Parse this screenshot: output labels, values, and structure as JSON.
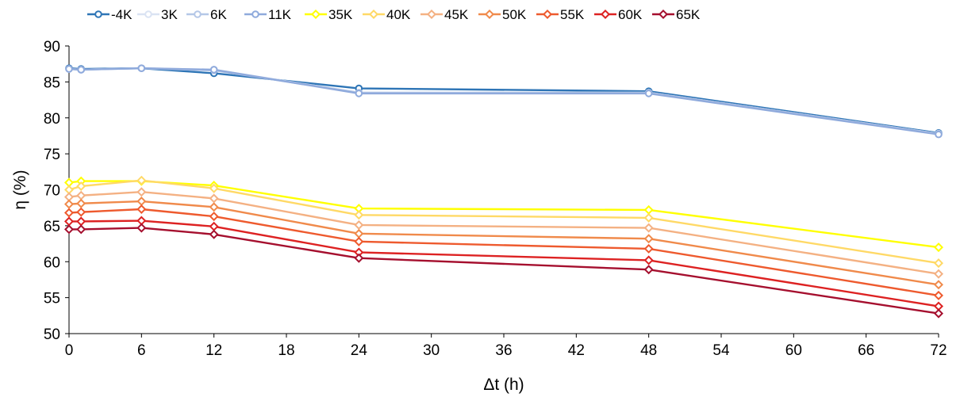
{
  "chart_data": {
    "type": "line",
    "xlabel": "Δt (h)",
    "ylabel": "η (%)",
    "xlim": [
      0,
      72
    ],
    "ylim": [
      50,
      90
    ],
    "xticks": [
      0,
      6,
      12,
      18,
      24,
      30,
      36,
      42,
      48,
      54,
      60,
      66,
      72
    ],
    "yticks": [
      50,
      55,
      60,
      65,
      70,
      75,
      80,
      85,
      90
    ],
    "grid": false,
    "legend_position": "top",
    "x": [
      0,
      1,
      6,
      12,
      24,
      48,
      72
    ],
    "series": [
      {
        "name": "-4K",
        "marker": "circle",
        "color": "#2E75B6",
        "values": [
          86.9,
          86.8,
          86.9,
          86.2,
          84.1,
          83.7,
          77.9
        ]
      },
      {
        "name": "3K",
        "marker": "circle",
        "color": "#DAE3F3",
        "values": [
          86.8,
          86.7,
          86.9,
          86.7,
          83.5,
          83.5,
          77.8
        ]
      },
      {
        "name": "6K",
        "marker": "circle",
        "color": "#B4C7E7",
        "values": [
          86.8,
          86.7,
          86.9,
          86.6,
          83.5,
          83.5,
          77.8
        ]
      },
      {
        "name": "11K",
        "marker": "circle",
        "color": "#8FAADC",
        "values": [
          86.8,
          86.7,
          86.9,
          86.7,
          83.4,
          83.4,
          77.7
        ]
      },
      {
        "name": "35K",
        "marker": "diamond",
        "color": "#FFFF00",
        "values": [
          71.0,
          71.2,
          71.2,
          70.6,
          67.4,
          67.2,
          62.0
        ]
      },
      {
        "name": "40K",
        "marker": "diamond",
        "color": "#FFD966",
        "values": [
          70.0,
          70.5,
          71.3,
          70.2,
          66.5,
          66.1,
          59.8
        ]
      },
      {
        "name": "45K",
        "marker": "diamond",
        "color": "#F4B183",
        "values": [
          69.0,
          69.2,
          69.7,
          68.8,
          65.1,
          64.7,
          58.3
        ]
      },
      {
        "name": "50K",
        "marker": "diamond",
        "color": "#F08A4B",
        "values": [
          68.0,
          68.1,
          68.4,
          67.6,
          63.9,
          63.2,
          56.8
        ]
      },
      {
        "name": "55K",
        "marker": "diamond",
        "color": "#EE5A2E",
        "values": [
          66.8,
          66.9,
          67.3,
          66.3,
          62.8,
          61.8,
          55.3
        ]
      },
      {
        "name": "60K",
        "marker": "diamond",
        "color": "#DD2222",
        "values": [
          65.6,
          65.6,
          65.7,
          64.9,
          61.3,
          60.2,
          53.8
        ]
      },
      {
        "name": "65K",
        "marker": "diamond",
        "color": "#A50F2E",
        "values": [
          64.5,
          64.5,
          64.7,
          63.8,
          60.5,
          58.9,
          52.8
        ]
      }
    ]
  }
}
